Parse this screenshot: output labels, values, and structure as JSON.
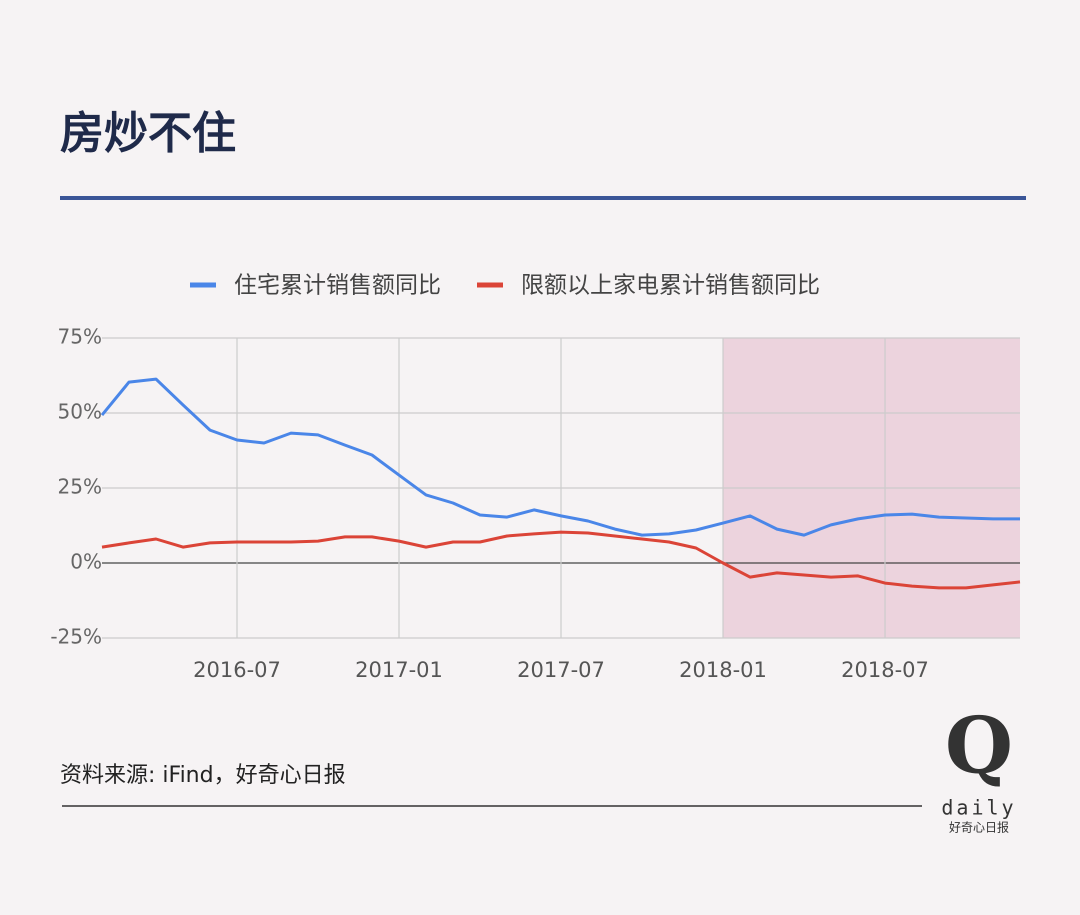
{
  "chart_data": {
    "type": "line",
    "title": "房炒不住",
    "x": [
      "2016-02",
      "2016-03",
      "2016-04",
      "2016-05",
      "2016-06",
      "2016-07",
      "2016-08",
      "2016-09",
      "2016-10",
      "2016-11",
      "2016-12",
      "2017-01",
      "2017-02",
      "2017-03",
      "2017-04",
      "2017-05",
      "2017-06",
      "2017-07",
      "2017-08",
      "2017-09",
      "2017-10",
      "2017-11",
      "2017-12",
      "2018-01",
      "2018-02",
      "2018-03",
      "2018-04",
      "2018-05",
      "2018-06",
      "2018-07",
      "2018-08",
      "2018-09",
      "2018-10",
      "2018-11",
      "2018-12"
    ],
    "series": [
      {
        "name": "住宅累计销售额同比",
        "color": "#4a86e8",
        "values": [
          49.3,
          60.3,
          61.3,
          52.7,
          44.3,
          41,
          40,
          43.3,
          42.7,
          39.3,
          36,
          29.3,
          22.7,
          20,
          16,
          15.3,
          17.7,
          15.7,
          14,
          11.3,
          9.3,
          9.7,
          11,
          13.3,
          15.7,
          11.3,
          9.3,
          12.7,
          14.7,
          16,
          16.3,
          15.3,
          15,
          14.7,
          14.7
        ]
      },
      {
        "name": "限额以上家电累计销售额同比",
        "color": "#db4437",
        "values": [
          5.3,
          6.7,
          8,
          5.3,
          6.7,
          7,
          7,
          7,
          7.3,
          8.7,
          8.7,
          7.3,
          5.3,
          7,
          7,
          9,
          9.7,
          10.3,
          10,
          9,
          8,
          7,
          5,
          0,
          -4.7,
          -3.3,
          -4,
          -4.7,
          -4.3,
          -6.7,
          -7.7,
          -8.3,
          -8.3,
          -7.3,
          -6.3
        ]
      }
    ],
    "xlim": [
      "2016-02",
      "2018-12"
    ],
    "xticks": [
      "2016-07",
      "2017-01",
      "2017-07",
      "2018-01",
      "2018-07"
    ],
    "ylim": [
      -25,
      75
    ],
    "yticks": [
      {
        "value": -25,
        "label": "-25%"
      },
      {
        "value": 0,
        "label": "0%"
      },
      {
        "value": 25,
        "label": "25%"
      },
      {
        "value": 50,
        "label": "50%"
      },
      {
        "value": 75,
        "label": "75%"
      }
    ],
    "grid": true,
    "legend": "top",
    "shaded_range": [
      "2018-01",
      "2018-12"
    ],
    "shade_color": "#e8c8d6"
  },
  "source": "资料来源: iFind，好奇心日报",
  "logo": {
    "mark": "Q",
    "word": "daily",
    "name": "好奇心日报"
  }
}
